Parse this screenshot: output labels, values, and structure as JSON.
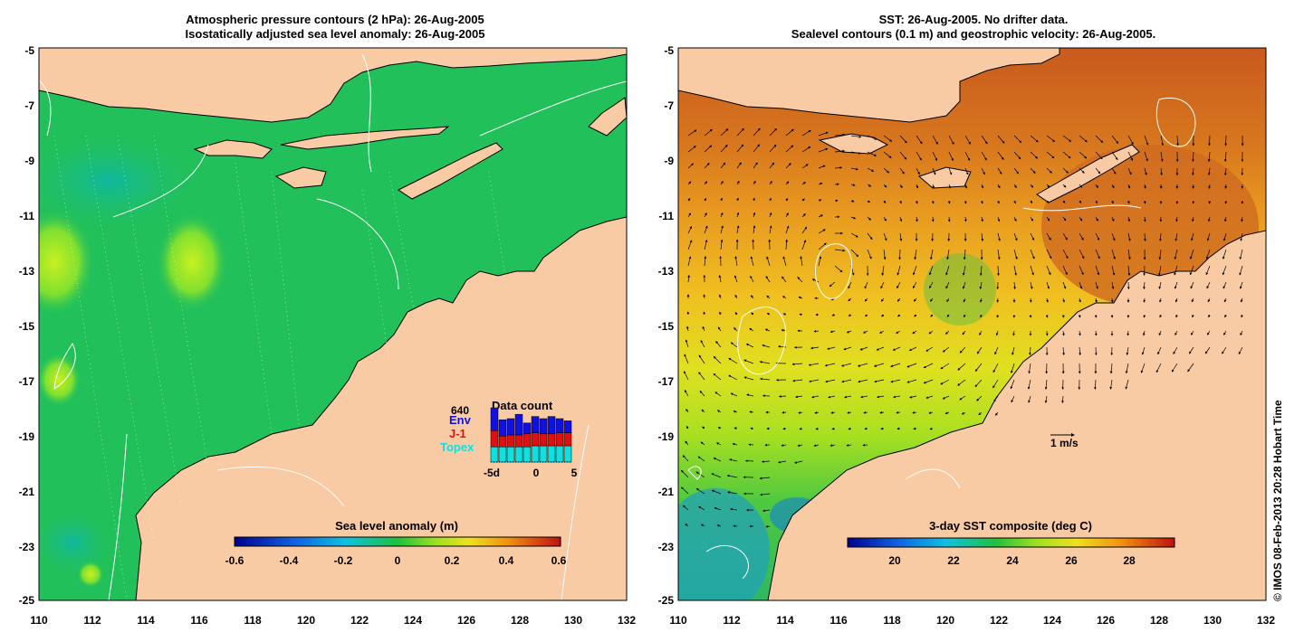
{
  "colors": {
    "land": "#f9cba4",
    "ssa_background": "#22c05a",
    "sst_warm": "#d2691e",
    "sst_mid": "#e8a020",
    "sst_cool": "#2ec04a",
    "contour": "#ffffff",
    "coast": "#000000"
  },
  "left_panel": {
    "title_line1": "Atmospheric pressure contours (2 hPa): 26-Aug-2005",
    "title_line2": "Isostatically adjusted sea level anomaly: 26-Aug-2005",
    "colorbar": {
      "label": "Sea level anomaly (m)",
      "ticks": [
        "-0.6",
        "-0.4",
        "-0.2",
        "0",
        "0.2",
        "0.4",
        "0.6"
      ],
      "range": [
        -0.6,
        0.6
      ]
    },
    "data_count": {
      "title": "Data count",
      "max_label": "640",
      "legend": [
        "Env",
        "J-1",
        "Topex"
      ],
      "legend_colors": [
        "#1010e0",
        "#e01010",
        "#10e0e0"
      ],
      "x_ticks": [
        "-5d",
        "0",
        "5"
      ],
      "bars": [
        {
          "day": -5,
          "topex": 0.28,
          "j1": 0.3,
          "env": 0.42
        },
        {
          "day": -4,
          "topex": 0.28,
          "j1": 0.2,
          "env": 0.3
        },
        {
          "day": -3,
          "topex": 0.28,
          "j1": 0.22,
          "env": 0.3
        },
        {
          "day": -2,
          "topex": 0.28,
          "j1": 0.22,
          "env": 0.38
        },
        {
          "day": -1,
          "topex": 0.28,
          "j1": 0.24,
          "env": 0.2
        },
        {
          "day": 0,
          "topex": 0.3,
          "j1": 0.24,
          "env": 0.3
        },
        {
          "day": 1,
          "topex": 0.3,
          "j1": 0.22,
          "env": 0.28
        },
        {
          "day": 2,
          "topex": 0.3,
          "j1": 0.22,
          "env": 0.32
        },
        {
          "day": 3,
          "topex": 0.3,
          "j1": 0.24,
          "env": 0.26
        },
        {
          "day": 4,
          "topex": 0.3,
          "j1": 0.24,
          "env": 0.22
        }
      ]
    }
  },
  "right_panel": {
    "title_line1": "SST: 26-Aug-2005. No drifter data.",
    "title_line2": "Sealevel contours (0.1 m) and geostrophic velocity: 26-Aug-2005.",
    "colorbar": {
      "label": "3-day SST composite (deg C)",
      "ticks": [
        "20",
        "22",
        "24",
        "26",
        "28"
      ],
      "range": [
        18.5,
        29.5
      ]
    },
    "velocity_scale_label": "1 m/s"
  },
  "axes": {
    "x_ticks": [
      "110",
      "112",
      "114",
      "116",
      "118",
      "120",
      "122",
      "124",
      "126",
      "128",
      "130",
      "132"
    ],
    "y_ticks": [
      "-5",
      "-7",
      "-9",
      "-11",
      "-13",
      "-15",
      "-17",
      "-19",
      "-21",
      "-23",
      "-25"
    ],
    "lon_range": [
      110,
      132
    ],
    "lat_range": [
      -25,
      -5
    ]
  },
  "credit": "© IMOS 08-Feb-2013 20:28 Hobart Time"
}
